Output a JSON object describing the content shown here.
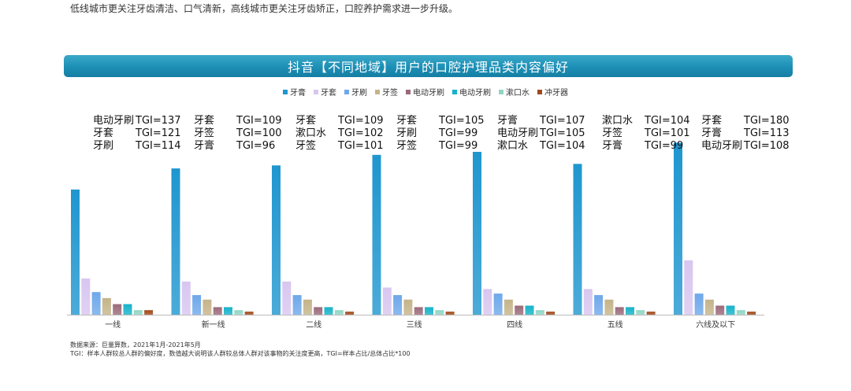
{
  "intro_text": "低线城市更关注牙齿清洁、口气清新，高线城市更关注牙齿矫正，口腔养护需求进一步升级。",
  "chart_data": {
    "type": "bar",
    "title": "抖音【不同地域】用户的口腔护理品类内容偏好",
    "categories": [
      "一线",
      "新一线",
      "二线",
      "三线",
      "四线",
      "五线",
      "六线及以下"
    ],
    "series": [
      {
        "name": "牙膏",
        "color": "#1f96cf",
        "values": [
          83,
          97,
          99,
          106,
          108,
          100,
          114
        ]
      },
      {
        "name": "牙套",
        "color": "#d8c6f0",
        "values": [
          24,
          22,
          22,
          18,
          17,
          17,
          36
        ]
      },
      {
        "name": "牙刷",
        "color": "#6ea8ea",
        "values": [
          15,
          13,
          13,
          13,
          14,
          13,
          14
        ]
      },
      {
        "name": "牙签",
        "color": "#c5b48a",
        "values": [
          11,
          10,
          10,
          10,
          10,
          10,
          10
        ]
      },
      {
        "name": "电动牙刷",
        "color": "#9b6a7a",
        "values": [
          7,
          5,
          5,
          5,
          6,
          5,
          6
        ]
      },
      {
        "name": "电动牙刷",
        "color": "#17b2c8",
        "values": [
          7,
          5,
          5,
          5,
          6,
          5,
          6
        ]
      },
      {
        "name": "漱口水",
        "color": "#8fd6c4",
        "values": [
          3,
          3,
          3,
          3,
          3,
          3,
          3
        ]
      },
      {
        "name": "冲牙器",
        "color": "#a04a1a",
        "values": [
          3,
          2,
          2,
          2,
          2,
          2,
          2
        ]
      }
    ],
    "ylim": [
      0,
      120
    ],
    "annotations": [
      [
        {
          "name": "电动牙刷",
          "tgi": "TGI=137"
        },
        {
          "name": "牙套",
          "tgi": "TGI=121"
        },
        {
          "name": "牙刷",
          "tgi": "TGI=114"
        }
      ],
      [
        {
          "name": "牙套",
          "tgi": "TGI=109"
        },
        {
          "name": "牙签",
          "tgi": "TGI=100"
        },
        {
          "name": "牙膏",
          "tgi": "TGI=96"
        }
      ],
      [
        {
          "name": "牙套",
          "tgi": "TGI=109"
        },
        {
          "name": "漱口水",
          "tgi": "TGI=102"
        },
        {
          "name": "牙签",
          "tgi": "TGI=101"
        }
      ],
      [
        {
          "name": "牙套",
          "tgi": "TGI=105"
        },
        {
          "name": "牙刷",
          "tgi": "TGI=99"
        },
        {
          "name": "牙签",
          "tgi": "TGI=99"
        }
      ],
      [
        {
          "name": "牙膏",
          "tgi": "TGI=107"
        },
        {
          "name": "电动牙刷",
          "tgi": "TGI=105"
        },
        {
          "name": "漱口水",
          "tgi": "TGI=104"
        }
      ],
      [
        {
          "name": "漱口水",
          "tgi": "TGI=104"
        },
        {
          "name": "牙签",
          "tgi": "TGI=101"
        },
        {
          "name": "牙膏",
          "tgi": "TGI=99"
        }
      ],
      [
        {
          "name": "牙套",
          "tgi": "TGI=180"
        },
        {
          "name": "牙膏",
          "tgi": "TGI=113"
        },
        {
          "name": "电动牙刷",
          "tgi": "TGI=108"
        }
      ]
    ]
  },
  "footnote": {
    "source": "数据来源：巨量算数，2021年1月-2021年5月",
    "definition": "TGI：样本人群较总人群的偏好度，数值越大说明该人群较总体人群对该事物的关注度更高，TGI=样本占比/总体占比*100"
  }
}
